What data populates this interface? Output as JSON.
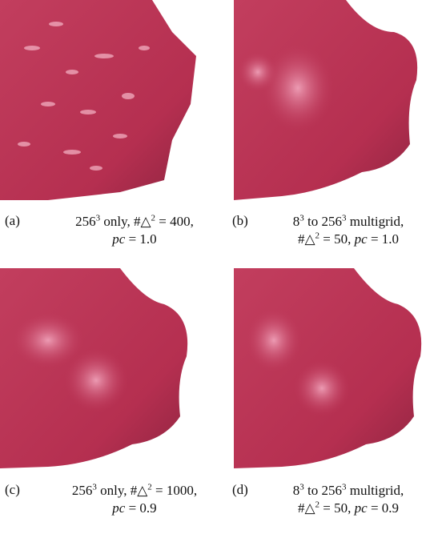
{
  "panels": [
    {
      "label": "(a)",
      "caption": [
        [
          "256",
          "3",
          " only, #△",
          "2",
          " = 400,"
        ],
        [
          "pc",
          " = 1.0"
        ]
      ]
    },
    {
      "label": "(b)",
      "caption": [
        [
          "8",
          "3",
          " to 256",
          "3",
          " multigrid,"
        ],
        [
          "#△",
          "2",
          " = 50, ",
          "pc",
          " = 1.0"
        ]
      ]
    },
    {
      "label": "(c)",
      "caption": [
        [
          "256",
          "3",
          " only, #△",
          "2",
          " = 1000,"
        ],
        [
          "pc",
          " = 0.9"
        ]
      ]
    },
    {
      "label": "(d)",
      "caption": [
        [
          "8",
          "3",
          " to 256",
          "3",
          " multigrid,"
        ],
        [
          "#△",
          "2",
          " = 50, ",
          "pc",
          " = 0.9"
        ]
      ]
    }
  ]
}
